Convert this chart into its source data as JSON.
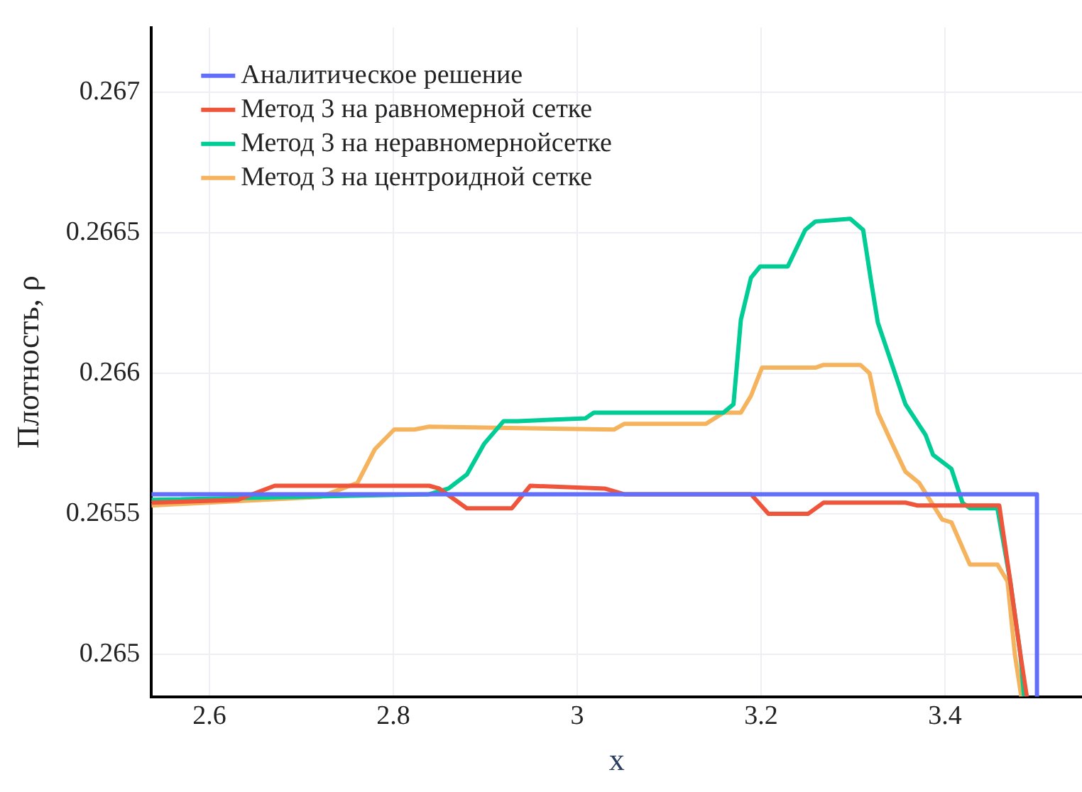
{
  "chart_data": {
    "type": "line",
    "xlabel": "x",
    "ylabel": "Плотность, ρ",
    "xlim": [
      2.537,
      3.549
    ],
    "ylim": [
      0.26485,
      0.26723
    ],
    "xticks": [
      2.6,
      2.8,
      3,
      3.2,
      3.4
    ],
    "yticks": [
      0.265,
      0.2655,
      0.266,
      0.2665,
      0.267
    ],
    "grid": true,
    "legend": "top left",
    "marker": "none",
    "line_style": "solid",
    "series": [
      {
        "name": "Аналитическое решение",
        "color": "#636efa",
        "x": [
          2.537,
          3.5,
          3.5
        ],
        "values": [
          0.26557,
          0.26557,
          0.26485
        ]
      },
      {
        "name": "Метод 3 на равномерной сетке",
        "color": "#ef553b",
        "x": [
          2.537,
          2.631,
          2.671,
          2.839,
          2.85,
          2.88,
          2.929,
          2.949,
          3.03,
          3.051,
          3.189,
          3.208,
          3.251,
          3.268,
          3.357,
          3.37,
          3.459,
          3.471,
          3.482,
          3.489
        ],
        "values": [
          0.26554,
          0.26555,
          0.2656,
          0.2656,
          0.26559,
          0.26552,
          0.26552,
          0.2656,
          0.26559,
          0.26557,
          0.26557,
          0.2655,
          0.2655,
          0.26554,
          0.26554,
          0.26553,
          0.26553,
          0.26526,
          0.265,
          0.26485
        ]
      },
      {
        "name": "Метод 3 на неравномернойсетке",
        "color": "#00cc96",
        "x": [
          2.537,
          2.839,
          2.86,
          2.88,
          2.899,
          2.92,
          2.935,
          3.009,
          3.018,
          3.159,
          3.17,
          3.178,
          3.189,
          3.199,
          3.229,
          3.248,
          3.259,
          3.297,
          3.311,
          3.32,
          3.327,
          3.357,
          3.379,
          3.387,
          3.407,
          3.419,
          3.427,
          3.457,
          3.471,
          3.482,
          3.486
        ],
        "values": [
          0.26555,
          0.26557,
          0.26559,
          0.26564,
          0.26575,
          0.26583,
          0.26583,
          0.26584,
          0.26586,
          0.26586,
          0.26589,
          0.26619,
          0.26634,
          0.26638,
          0.26638,
          0.26651,
          0.26654,
          0.26655,
          0.26651,
          0.26632,
          0.26618,
          0.26589,
          0.26578,
          0.26571,
          0.26566,
          0.26554,
          0.26552,
          0.26552,
          0.26526,
          0.265,
          0.26485
        ]
      },
      {
        "name": "Метод 3 на центроидной сетке",
        "color": "#f6b35e",
        "x": [
          2.537,
          2.72,
          2.761,
          2.78,
          2.801,
          2.823,
          2.839,
          3.04,
          3.051,
          3.14,
          3.159,
          3.178,
          3.189,
          3.201,
          3.259,
          3.268,
          3.308,
          3.318,
          3.327,
          3.341,
          3.357,
          3.372,
          3.397,
          3.407,
          3.427,
          3.457,
          3.468,
          3.476,
          3.483
        ],
        "values": [
          0.26553,
          0.26556,
          0.26561,
          0.26573,
          0.2658,
          0.2658,
          0.26581,
          0.2658,
          0.26582,
          0.26582,
          0.26586,
          0.26586,
          0.26592,
          0.26602,
          0.26602,
          0.26603,
          0.26603,
          0.266,
          0.26586,
          0.26576,
          0.26565,
          0.26561,
          0.26548,
          0.26547,
          0.26532,
          0.26532,
          0.26526,
          0.265,
          0.26485
        ]
      }
    ]
  }
}
